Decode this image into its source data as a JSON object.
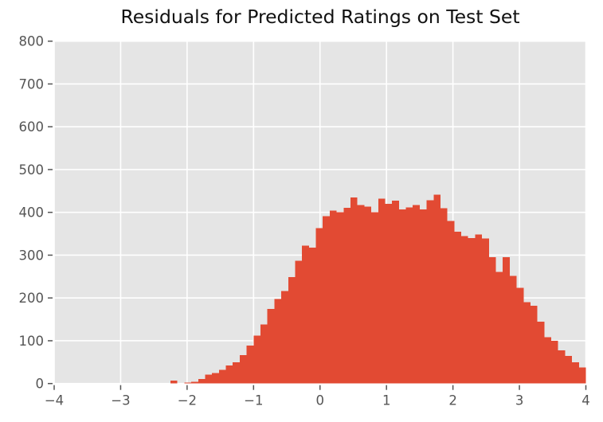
{
  "chart_data": {
    "type": "bar",
    "subtype": "histogram",
    "title": "Residuals for Predicted Ratings on Test Set",
    "xlabel": "",
    "ylabel": "",
    "xlim": [
      -4,
      4
    ],
    "ylim": [
      0,
      800
    ],
    "grid": true,
    "legend_position": "none",
    "bin_start": -2.25,
    "bin_width": 0.1041667,
    "values": [
      7,
      0,
      2,
      4,
      11,
      21,
      25,
      32,
      42,
      50,
      66,
      89,
      112,
      138,
      174,
      198,
      216,
      249,
      287,
      322,
      318,
      363,
      391,
      404,
      400,
      411,
      435,
      417,
      413,
      400,
      432,
      420,
      427,
      407,
      412,
      417,
      407,
      428,
      441,
      410,
      380,
      355,
      345,
      340,
      348,
      339,
      295,
      261,
      295,
      252,
      224,
      190,
      182,
      145,
      108,
      100,
      78,
      65,
      50,
      38
    ],
    "xticks": {
      "values": [
        -4,
        -3,
        -2,
        -1,
        0,
        1,
        2,
        3,
        4
      ],
      "labels": [
        "−4",
        "−3",
        "−2",
        "−1",
        "0",
        "1",
        "2",
        "3",
        "4"
      ]
    },
    "yticks": {
      "values": [
        0,
        100,
        200,
        300,
        400,
        500,
        600,
        700,
        800
      ],
      "labels": [
        "0",
        "100",
        "200",
        "300",
        "400",
        "500",
        "600",
        "700",
        "800"
      ]
    },
    "colors": {
      "bar": "#E24A33",
      "plot_background": "#E5E5E5",
      "figure_background": "#FFFFFF",
      "gridline": "#FFFFFF",
      "tick_label": "#555555",
      "title_text": "#111111"
    }
  }
}
